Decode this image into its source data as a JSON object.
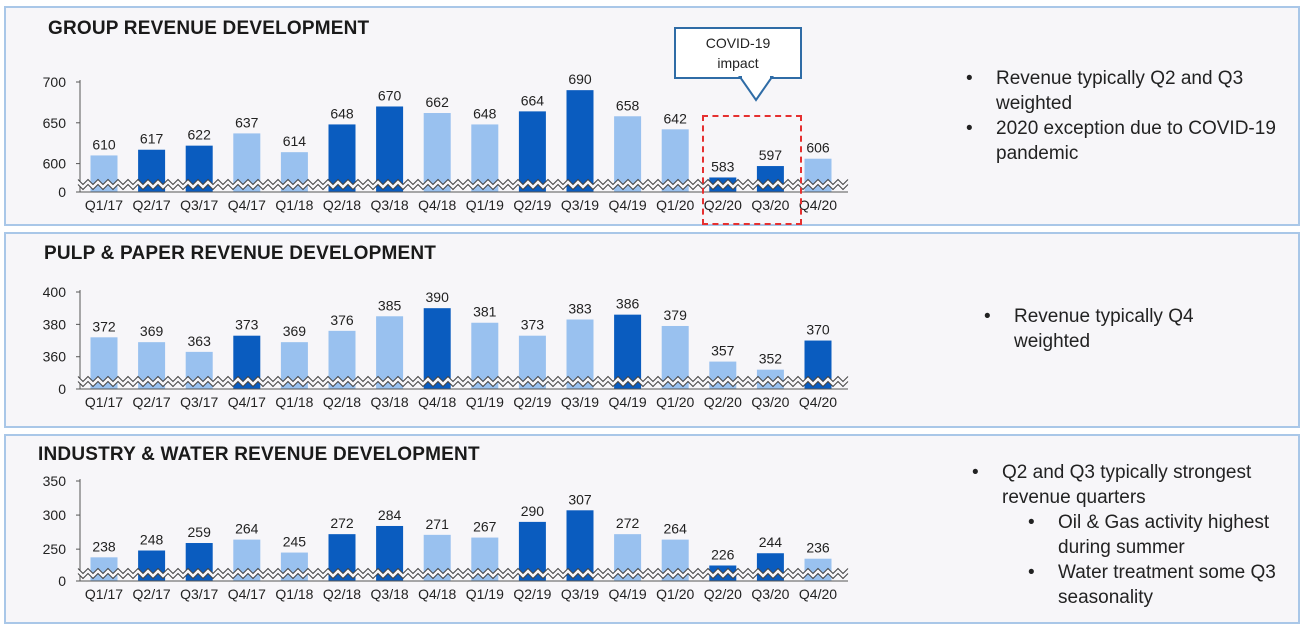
{
  "colors": {
    "light": "#99c1ef",
    "dark": "#0a5cbf",
    "border": "#a9c7e8",
    "highlight": "#e53030"
  },
  "panels": [
    {
      "title": "GROUP REVENUE DEVELOPMENT",
      "notes": [
        {
          "text": "Revenue typically Q2 and Q3 weighted",
          "level": 1
        },
        {
          "text": "2020 exception due to COVID-19 pandemic",
          "level": 1
        }
      ]
    },
    {
      "title": "PULP & PAPER REVENUE DEVELOPMENT",
      "notes": [
        {
          "text": "Revenue typically Q4 weighted",
          "level": 1
        }
      ]
    },
    {
      "title": "INDUSTRY & WATER REVENUE DEVELOPMENT",
      "notes": [
        {
          "text": "Q2 and Q3 typically strongest revenue quarters",
          "level": 1
        },
        {
          "text": "Oil & Gas activity highest during summer",
          "level": 2
        },
        {
          "text": "Water treatment some Q3 seasonality",
          "level": 2
        }
      ]
    }
  ],
  "callout": {
    "line1": "COVID-19",
    "line2": "impact"
  },
  "chart_data": [
    {
      "type": "bar",
      "title": "GROUP REVENUE DEVELOPMENT",
      "categories": [
        "Q1/17",
        "Q2/17",
        "Q3/17",
        "Q4/17",
        "Q1/18",
        "Q2/18",
        "Q3/18",
        "Q4/18",
        "Q1/19",
        "Q2/19",
        "Q3/19",
        "Q4/19",
        "Q1/20",
        "Q2/20",
        "Q3/20",
        "Q4/20"
      ],
      "values": [
        610,
        617,
        622,
        637,
        614,
        648,
        670,
        662,
        648,
        664,
        690,
        658,
        642,
        583,
        597,
        606
      ],
      "highlight": [
        false,
        true,
        true,
        false,
        false,
        true,
        true,
        false,
        false,
        true,
        true,
        false,
        false,
        true,
        true,
        false
      ],
      "yticks": [
        0,
        600,
        650,
        700
      ],
      "ylim": [
        575,
        700
      ],
      "axis_break": true,
      "grid": false
    },
    {
      "type": "bar",
      "title": "PULP & PAPER REVENUE DEVELOPMENT",
      "categories": [
        "Q1/17",
        "Q2/17",
        "Q3/17",
        "Q4/17",
        "Q1/18",
        "Q2/18",
        "Q3/18",
        "Q4/18",
        "Q1/19",
        "Q2/19",
        "Q3/19",
        "Q4/19",
        "Q1/20",
        "Q2/20",
        "Q3/20",
        "Q4/20"
      ],
      "values": [
        372,
        369,
        363,
        373,
        369,
        376,
        385,
        390,
        381,
        373,
        383,
        386,
        379,
        357,
        352,
        370
      ],
      "highlight": [
        false,
        false,
        false,
        true,
        false,
        false,
        false,
        true,
        false,
        false,
        false,
        true,
        false,
        false,
        false,
        true
      ],
      "yticks": [
        0,
        360,
        380,
        400
      ],
      "ylim": [
        345,
        400
      ],
      "axis_break": true,
      "grid": false
    },
    {
      "type": "bar",
      "title": "INDUSTRY & WATER REVENUE DEVELOPMENT",
      "categories": [
        "Q1/17",
        "Q2/17",
        "Q3/17",
        "Q4/17",
        "Q1/18",
        "Q2/18",
        "Q3/18",
        "Q4/18",
        "Q1/19",
        "Q2/19",
        "Q3/19",
        "Q4/19",
        "Q1/20",
        "Q2/20",
        "Q3/20",
        "Q4/20"
      ],
      "values": [
        238,
        248,
        259,
        264,
        245,
        272,
        284,
        271,
        267,
        290,
        307,
        272,
        264,
        226,
        244,
        236
      ],
      "highlight": [
        false,
        true,
        true,
        false,
        false,
        true,
        true,
        false,
        false,
        true,
        true,
        false,
        false,
        true,
        true,
        false
      ],
      "yticks": [
        0,
        250,
        300,
        350
      ],
      "ylim": [
        215,
        350
      ],
      "axis_break": true,
      "grid": false
    }
  ]
}
